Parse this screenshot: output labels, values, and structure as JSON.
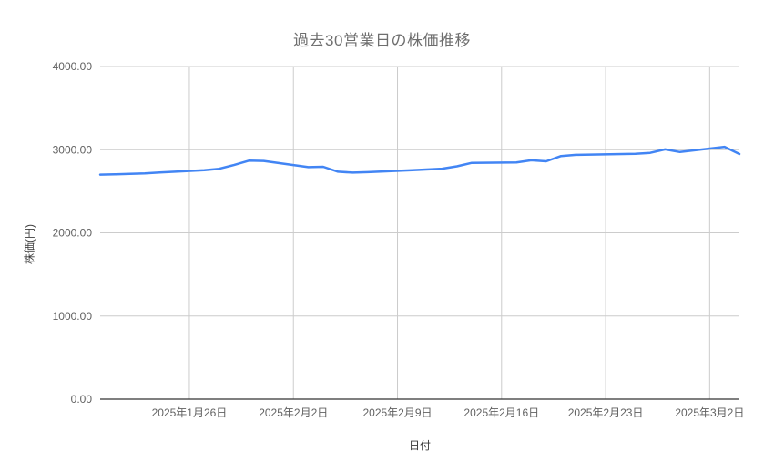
{
  "chart_data": {
    "type": "line",
    "title": "過去30営業日の株価推移",
    "xlabel": "日付",
    "ylabel": "株価(円)",
    "grid": true,
    "legend": "none",
    "ylim": [
      0,
      4000
    ],
    "x_axis_span_days": 43,
    "y_ticks": [
      {
        "value": 4000,
        "label": "4000.00"
      },
      {
        "value": 3000,
        "label": "3000.00"
      },
      {
        "value": 2000,
        "label": "2000.00"
      },
      {
        "value": 1000,
        "label": "1000.00"
      },
      {
        "value": 0,
        "label": "0.00"
      }
    ],
    "x_ticks": [
      {
        "day": 6,
        "label": "2025年1月26日"
      },
      {
        "day": 13,
        "label": "2025年2月2日"
      },
      {
        "day": 20,
        "label": "2025年2月9日"
      },
      {
        "day": 27,
        "label": "2025年2月16日"
      },
      {
        "day": 34,
        "label": "2025年2月23日"
      },
      {
        "day": 41,
        "label": "2025年3月2日"
      }
    ],
    "points": [
      {
        "date": "2025/1/20",
        "day": 0,
        "value": 2700
      },
      {
        "date": "2025/1/21",
        "day": 1,
        "value": 2704
      },
      {
        "date": "2025/1/22",
        "day": 2,
        "value": 2709
      },
      {
        "date": "2025/1/23",
        "day": 3,
        "value": 2716
      },
      {
        "date": "2025/1/24",
        "day": 4,
        "value": 2727
      },
      {
        "date": "2025/1/27",
        "day": 7,
        "value": 2753
      },
      {
        "date": "2025/1/28",
        "day": 8,
        "value": 2770
      },
      {
        "date": "2025/1/29",
        "day": 9,
        "value": 2815
      },
      {
        "date": "2025/1/30",
        "day": 10,
        "value": 2868
      },
      {
        "date": "2025/1/31",
        "day": 11,
        "value": 2865
      },
      {
        "date": "2025/2/3",
        "day": 14,
        "value": 2790
      },
      {
        "date": "2025/2/4",
        "day": 15,
        "value": 2795
      },
      {
        "date": "2025/2/5",
        "day": 16,
        "value": 2735
      },
      {
        "date": "2025/2/6",
        "day": 17,
        "value": 2724
      },
      {
        "date": "2025/2/7",
        "day": 18,
        "value": 2730
      },
      {
        "date": "2025/2/10",
        "day": 21,
        "value": 2753
      },
      {
        "date": "2025/2/12",
        "day": 23,
        "value": 2772
      },
      {
        "date": "2025/2/13",
        "day": 24,
        "value": 2800
      },
      {
        "date": "2025/2/14",
        "day": 25,
        "value": 2842
      },
      {
        "date": "2025/2/17",
        "day": 28,
        "value": 2847
      },
      {
        "date": "2025/2/18",
        "day": 29,
        "value": 2872
      },
      {
        "date": "2025/2/19",
        "day": 30,
        "value": 2860
      },
      {
        "date": "2025/2/20",
        "day": 31,
        "value": 2924
      },
      {
        "date": "2025/2/21",
        "day": 32,
        "value": 2938
      },
      {
        "date": "2025/2/25",
        "day": 36,
        "value": 2950
      },
      {
        "date": "2025/2/26",
        "day": 37,
        "value": 2962
      },
      {
        "date": "2025/2/27",
        "day": 38,
        "value": 3004
      },
      {
        "date": "2025/2/28",
        "day": 39,
        "value": 2972
      },
      {
        "date": "2025/3/3",
        "day": 42,
        "value": 3034
      },
      {
        "date": "2025/3/4",
        "day": 43,
        "value": 2948
      }
    ],
    "colors": {
      "line": "#4285f4",
      "grid": "#cccccc",
      "axis_line": "#333333",
      "tick_label": "#616161",
      "title": "#6e6e6e",
      "axis_title": "#3c3c3c"
    }
  }
}
